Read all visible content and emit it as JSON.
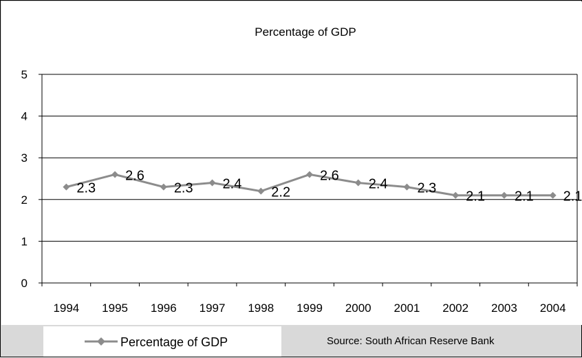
{
  "chart_data": {
    "type": "line",
    "title": "Percentage of GDP",
    "categories": [
      "1994",
      "1995",
      "1996",
      "1997",
      "1998",
      "1999",
      "2000",
      "2001",
      "2002",
      "2003",
      "2004"
    ],
    "series": [
      {
        "name": "Percentage of GDP",
        "values": [
          2.3,
          2.6,
          2.3,
          2.4,
          2.2,
          2.6,
          2.4,
          2.3,
          2.1,
          2.1,
          2.1
        ],
        "labels": [
          "2.3",
          "2.6",
          "2.3",
          "2.4",
          "2.2",
          "2.6",
          "2.4",
          "2.3",
          "2.1",
          "2.1",
          "2.1"
        ],
        "color": "#8c8c8c"
      }
    ],
    "yticks": [
      "0",
      "1",
      "2",
      "3",
      "4",
      "5"
    ],
    "ylim": [
      0,
      5
    ],
    "grid": true,
    "legend_position": "bottom-left",
    "source": "Source: South African Reserve Bank"
  }
}
